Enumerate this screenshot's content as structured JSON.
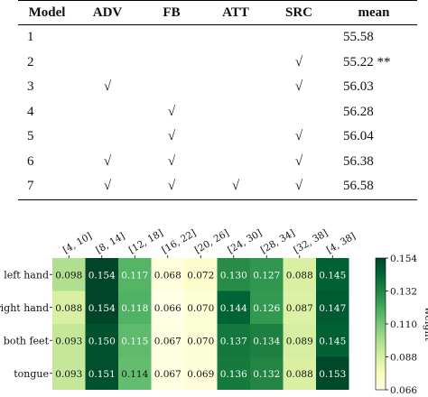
{
  "table": {
    "headers": [
      "Model",
      "ADV",
      "FB",
      "ATT",
      "SRC",
      "mean"
    ],
    "check_symbol": "√",
    "rows": [
      {
        "model": "1",
        "adv": "",
        "fb": "",
        "att": "",
        "src": "",
        "mean": "55.58"
      },
      {
        "model": "2",
        "adv": "",
        "fb": "",
        "att": "",
        "src": "√",
        "mean": "55.22 **"
      },
      {
        "model": "3",
        "adv": "√",
        "fb": "",
        "att": "",
        "src": "√",
        "mean": "56.03"
      },
      {
        "model": "4",
        "adv": "",
        "fb": "√",
        "att": "",
        "src": "",
        "mean": "56.28"
      },
      {
        "model": "5",
        "adv": "",
        "fb": "√",
        "att": "",
        "src": "√",
        "mean": "56.04"
      },
      {
        "model": "6",
        "adv": "√",
        "fb": "√",
        "att": "",
        "src": "√",
        "mean": "56.38"
      },
      {
        "model": "7",
        "adv": "√",
        "fb": "√",
        "att": "√",
        "src": "√",
        "mean": "56.58"
      }
    ]
  },
  "chart_data": {
    "type": "heatmap",
    "title": "",
    "xlabel": "",
    "ylabel": "",
    "x": [
      "[4, 10]",
      "[8, 14]",
      "[12, 18]",
      "[16, 22]",
      "[20, 26]",
      "[24, 30]",
      "[28, 34]",
      "[32, 38]",
      "[4, 38]"
    ],
    "y": [
      "left hand",
      "right hand",
      "both feet",
      "tongue"
    ],
    "values": [
      [
        0.098,
        0.154,
        0.117,
        0.068,
        0.072,
        0.13,
        0.127,
        0.088,
        0.145
      ],
      [
        0.088,
        0.154,
        0.118,
        0.066,
        0.07,
        0.144,
        0.126,
        0.087,
        0.147
      ],
      [
        0.093,
        0.15,
        0.115,
        0.067,
        0.07,
        0.137,
        0.134,
        0.089,
        0.145
      ],
      [
        0.093,
        0.151,
        0.114,
        0.067,
        0.069,
        0.136,
        0.132,
        0.088,
        0.153
      ]
    ],
    "colorbar": {
      "label": "weight",
      "min": 0.066,
      "max": 0.154,
      "ticks": [
        "0.154",
        "0.132",
        "0.110",
        "0.088",
        "0.066"
      ],
      "colormap": [
        "#ffffe5",
        "#f7fcb9",
        "#d9f0a3",
        "#addd8e",
        "#78c679",
        "#41ab5d",
        "#238443",
        "#006837",
        "#004529"
      ]
    }
  }
}
